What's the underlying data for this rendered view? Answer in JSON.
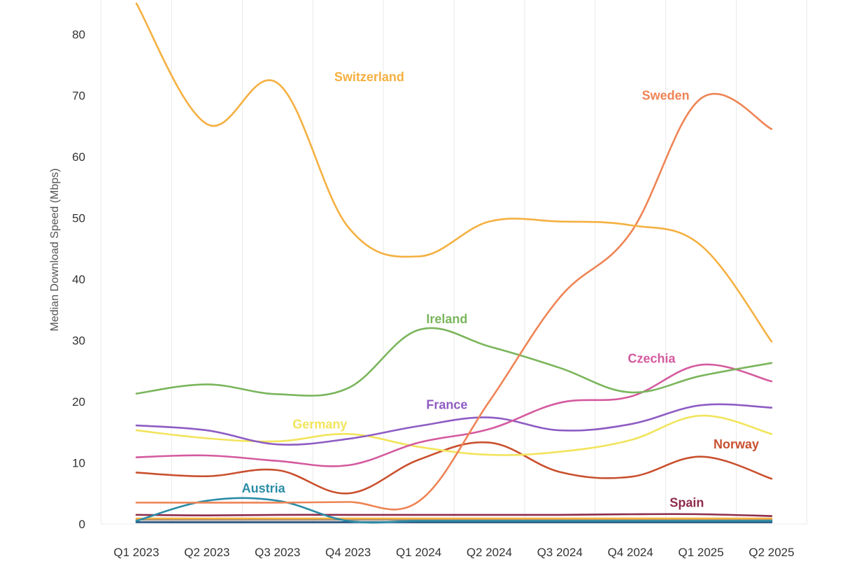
{
  "chart_data": {
    "type": "line",
    "title": "",
    "xlabel": "",
    "ylabel": "Median Download Speed (Mbps)",
    "ylim": [
      0,
      85
    ],
    "yticks": [
      0,
      10,
      20,
      30,
      40,
      50,
      60,
      70,
      80
    ],
    "grid": "vertical",
    "categories": [
      "Q1 2023",
      "Q2 2023",
      "Q3 2023",
      "Q4 2023",
      "Q1 2024",
      "Q2 2024",
      "Q3 2024",
      "Q4 2024",
      "Q1 2025",
      "Q2 2025"
    ],
    "series": [
      {
        "name": "Switzerland",
        "color": "#F5B041",
        "values": [
          85,
          65.3,
          72,
          48.5,
          43.7,
          49.4,
          49.4,
          48.8,
          45.5,
          29.8
        ]
      },
      {
        "name": "Sweden",
        "color": "#EE8455",
        "values": [
          3.5,
          3.5,
          3.5,
          3.6,
          3.7,
          20.0,
          37.0,
          47.5,
          69.5,
          64.5
        ]
      },
      {
        "name": "Ireland",
        "color": "#7AB55C",
        "values": [
          21.3,
          22.8,
          21.2,
          22.2,
          31.7,
          29.0,
          25.5,
          21.5,
          24.2,
          26.3
        ]
      },
      {
        "name": "Czechia",
        "color": "#D45A9E",
        "values": [
          10.9,
          11.2,
          10.3,
          9.6,
          13.3,
          15.5,
          19.8,
          20.8,
          26.0,
          23.3
        ]
      },
      {
        "name": "France",
        "color": "#8E5CC4",
        "values": [
          16.1,
          15.3,
          13.0,
          13.9,
          16.0,
          17.4,
          15.3,
          16.3,
          19.4,
          19.0
        ]
      },
      {
        "name": "Germany",
        "color": "#F2E45C",
        "values": [
          15.3,
          14.0,
          13.5,
          14.7,
          12.6,
          11.3,
          11.8,
          13.7,
          17.7,
          14.7
        ]
      },
      {
        "name": "Norway",
        "color": "#C9502E",
        "values": [
          8.4,
          7.8,
          8.8,
          5.0,
          10.5,
          13.3,
          8.5,
          7.7,
          11.0,
          7.4
        ]
      },
      {
        "name": "Austria",
        "color": "#2A8CA6",
        "values": [
          0.5,
          3.8,
          3.8,
          0.5,
          0.5,
          0.5,
          0.5,
          0.5,
          0.5,
          0.5
        ]
      },
      {
        "name": "Spain",
        "color": "#8E2B4B",
        "values": [
          1.5,
          1.4,
          1.5,
          1.5,
          1.5,
          1.5,
          1.5,
          1.6,
          1.6,
          1.3
        ]
      },
      {
        "name": "",
        "color": "#F5B041",
        "values": [
          0.9,
          0.9,
          0.9,
          0.9,
          0.9,
          0.9,
          0.9,
          0.9,
          0.9,
          0.9
        ]
      },
      {
        "name": "",
        "color": "#9A8A7A",
        "values": [
          0.7,
          0.7,
          0.7,
          0.7,
          0.7,
          0.7,
          0.7,
          0.7,
          0.7,
          0.7
        ]
      },
      {
        "name": "",
        "color": "#1F4E7A",
        "values": [
          0.3,
          0.3,
          0.3,
          0.3,
          0.3,
          0.3,
          0.3,
          0.3,
          0.3,
          0.3
        ]
      }
    ]
  }
}
